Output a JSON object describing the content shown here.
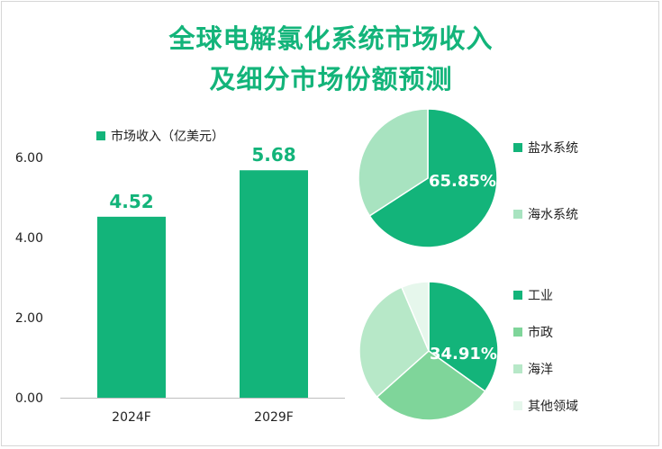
{
  "title_line1": "全球电解氯化系统市场收入",
  "title_line2": "及细分市场份额预测",
  "chart_data": [
    {
      "type": "bar",
      "legend": "市场收入（亿美元）",
      "categories": [
        "2024F",
        "2029F"
      ],
      "values": [
        4.52,
        5.68
      ],
      "value_labels": [
        "4.52",
        "5.68"
      ],
      "yticks": [
        "0.00",
        "2.00",
        "4.00",
        "6.00"
      ],
      "ylim": [
        0,
        6
      ],
      "color": "#13b47a",
      "grid": false
    },
    {
      "type": "pie",
      "series": [
        {
          "name": "盐水系统",
          "value": 65.85,
          "color": "#13b47a"
        },
        {
          "name": "海水系统",
          "value": 34.15,
          "color": "#a8e3c0"
        }
      ],
      "data_label": "65.85%",
      "legend_position": "right"
    },
    {
      "type": "pie",
      "series": [
        {
          "name": "工业",
          "value": 34.91,
          "color": "#13b47a"
        },
        {
          "name": "市政",
          "value": 28.5,
          "color": "#7fd59a"
        },
        {
          "name": "海洋",
          "value": 30.2,
          "color": "#b7e8c8"
        },
        {
          "name": "其他领域",
          "value": 6.39,
          "color": "#e6f7ec"
        }
      ],
      "data_label": "34.91%",
      "legend_position": "right"
    }
  ]
}
